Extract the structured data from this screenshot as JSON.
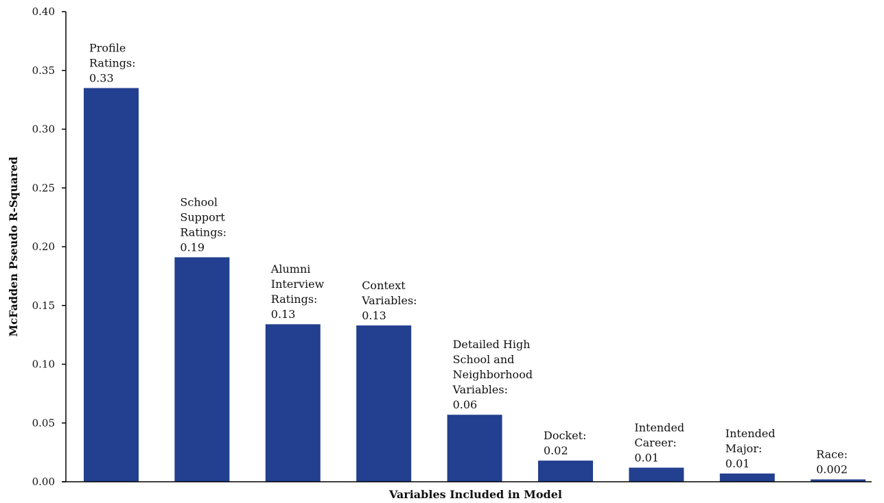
{
  "chart_data": {
    "type": "bar",
    "title": "",
    "xlabel": "Variables Included in Model",
    "ylabel": "McFadden Pseudo R-Squared",
    "ylim": [
      0,
      0.4
    ],
    "yticks": [
      "0.00",
      "0.05",
      "0.10",
      "0.15",
      "0.20",
      "0.25",
      "0.30",
      "0.35",
      "0.40"
    ],
    "grid": false,
    "bar_color": "#233f8f",
    "categories": [
      "Profile Ratings",
      "School Support Ratings",
      "Alumni Interview Ratings",
      "Context Variables",
      "Detailed High School and Neighborhood Variables",
      "Docket",
      "Intended Career",
      "Intended Major",
      "Race"
    ],
    "values": [
      0.335,
      0.191,
      0.134,
      0.133,
      0.057,
      0.018,
      0.012,
      0.007,
      0.002
    ],
    "data_labels": [
      [
        "Profile",
        "Ratings:",
        "0.33"
      ],
      [
        "School",
        "Support",
        "Ratings:",
        "0.19"
      ],
      [
        "Alumni",
        "Interview",
        "Ratings:",
        "0.13"
      ],
      [
        "Context",
        "Variables:",
        "0.13"
      ],
      [
        "Detailed High",
        "School and",
        "Neighborhood",
        "Variables:",
        "0.06"
      ],
      [
        "Docket:",
        "0.02"
      ],
      [
        "Intended",
        "Career:",
        "0.01"
      ],
      [
        "Intended",
        "Major:",
        "0.01"
      ],
      [
        "Race:",
        "0.002"
      ]
    ]
  }
}
